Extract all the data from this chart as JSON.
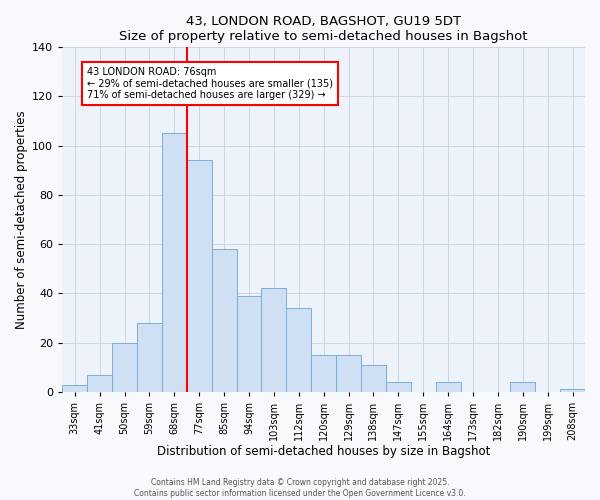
{
  "title": "43, LONDON ROAD, BAGSHOT, GU19 5DT",
  "subtitle": "Size of property relative to semi-detached houses in Bagshot",
  "xlabel": "Distribution of semi-detached houses by size in Bagshot",
  "ylabel": "Number of semi-detached properties",
  "categories": [
    "33sqm",
    "41sqm",
    "50sqm",
    "59sqm",
    "68sqm",
    "77sqm",
    "85sqm",
    "94sqm",
    "103sqm",
    "112sqm",
    "120sqm",
    "129sqm",
    "138sqm",
    "147sqm",
    "155sqm",
    "164sqm",
    "173sqm",
    "182sqm",
    "190sqm",
    "199sqm",
    "208sqm"
  ],
  "values": [
    3,
    7,
    20,
    28,
    105,
    94,
    58,
    39,
    42,
    34,
    15,
    15,
    11,
    4,
    0,
    4,
    0,
    0,
    4,
    0,
    1
  ],
  "bar_color": "#cfe0f5",
  "bar_edge_color": "#7aadd4",
  "vline_color": "red",
  "annotation_title": "43 LONDON ROAD: 76sqm",
  "annotation_line1": "← 29% of semi-detached houses are smaller (135)",
  "annotation_line2": "71% of semi-detached houses are larger (329) →",
  "annotation_box_color": "white",
  "annotation_box_edge": "red",
  "ylim": [
    0,
    140
  ],
  "yticks": [
    0,
    20,
    40,
    60,
    80,
    100,
    120,
    140
  ],
  "footer1": "Contains HM Land Registry data © Crown copyright and database right 2025.",
  "footer2": "Contains public sector information licensed under the Open Government Licence v3.0.",
  "background_color": "#f7f9fd",
  "plot_background": "#eef2fb"
}
